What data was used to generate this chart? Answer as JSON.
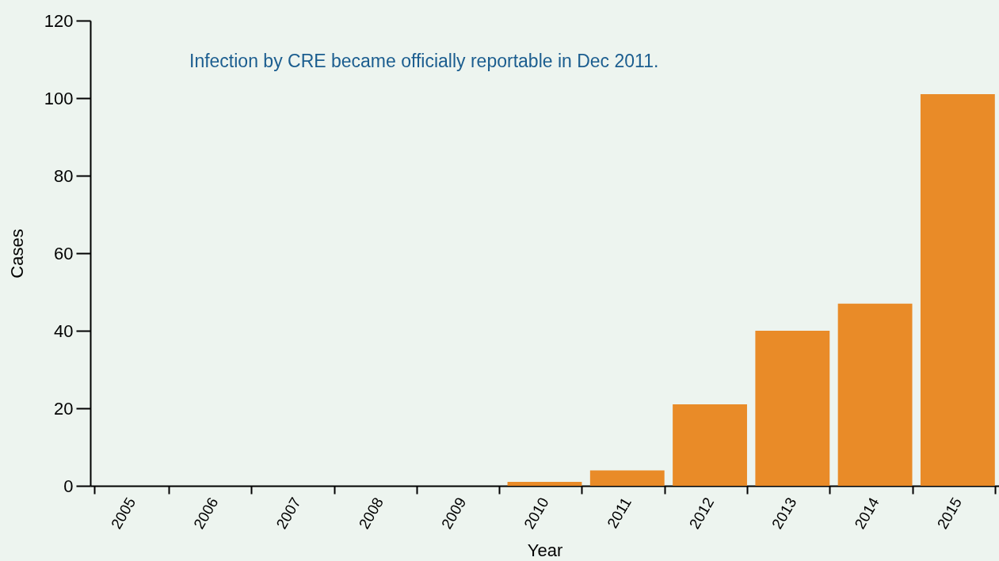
{
  "chart_data": {
    "type": "bar",
    "xlabel": "Year",
    "ylabel": "Cases",
    "categories": [
      "2005",
      "2006",
      "2007",
      "2008",
      "2009",
      "2010",
      "2011",
      "2012",
      "2013",
      "2014",
      "2015"
    ],
    "values": [
      0,
      0,
      0,
      0,
      0,
      1,
      4,
      21,
      40,
      47,
      101
    ],
    "color": "#e98b28",
    "ylim": [
      0,
      120
    ],
    "yticks": [
      0,
      20,
      40,
      60,
      80,
      100,
      120
    ],
    "grid": false,
    "annotations": [
      "Infection by CRE became officially reportable in Dec 2011."
    ]
  }
}
